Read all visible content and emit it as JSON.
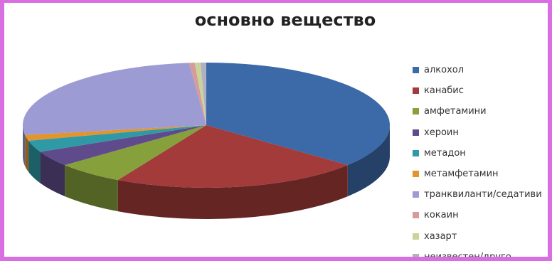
{
  "chart_data": {
    "type": "pie",
    "title": "основно вещество",
    "series": [
      {
        "name": "алкохол",
        "value": 36,
        "color": "#3c69a8"
      },
      {
        "name": "канабис",
        "value": 22,
        "color": "#a23b39"
      },
      {
        "name": "амфетамини",
        "value": 6,
        "color": "#86a03c"
      },
      {
        "name": "хероин",
        "value": 4,
        "color": "#5f4b8b"
      },
      {
        "name": "метадон",
        "value": 3,
        "color": "#2f9aa6"
      },
      {
        "name": "метамфетамин",
        "value": 1.5,
        "color": "#e0952e"
      },
      {
        "name": "транквиланти/седативи",
        "value": 26,
        "color": "#9d9bd3"
      },
      {
        "name": "кокаин",
        "value": 0.5,
        "color": "#d79b9a"
      },
      {
        "name": "хазарт",
        "value": 0.5,
        "color": "#c7d59b"
      },
      {
        "name": "неизвестен/друго",
        "value": 0.5,
        "color": "#b2aec4"
      }
    ],
    "legend_position": "right"
  }
}
